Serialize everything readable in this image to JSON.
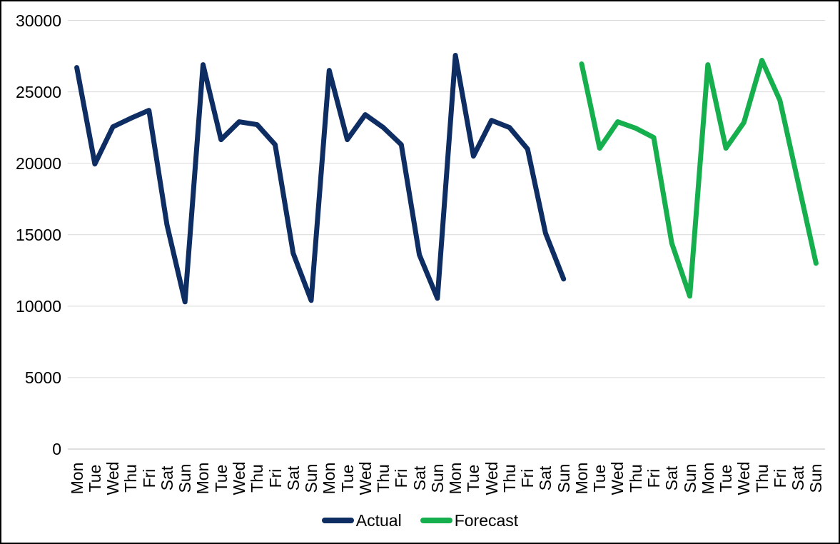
{
  "chart_data": {
    "type": "line",
    "title": "",
    "xlabel": "",
    "ylabel": "",
    "categories": [
      "Mon",
      "Tue",
      "Wed",
      "Thu",
      "Fri",
      "Sat",
      "Sun",
      "Mon",
      "Tue",
      "Wed",
      "Thu",
      "Fri",
      "Sat",
      "Sun",
      "Mon",
      "Tue",
      "Wed",
      "Thu",
      "Fri",
      "Sat",
      "Sun",
      "Mon",
      "Tue",
      "Wed",
      "Thu",
      "Fri",
      "Sat",
      "Sun",
      "Mon",
      "Tue",
      "Wed",
      "Thu",
      "Fri",
      "Sat",
      "Sun",
      "Mon",
      "Tue",
      "Wed",
      "Thu",
      "Fri",
      "Sat",
      "Sun"
    ],
    "series": [
      {
        "name": "Actual",
        "color": "#0e2e63",
        "values": [
          26700,
          19950,
          22550,
          23150,
          23700,
          15700,
          10300,
          26900,
          21650,
          22900,
          22700,
          21300,
          13700,
          10400,
          26500,
          21650,
          23400,
          22500,
          21300,
          13600,
          10550,
          27550,
          20500,
          23000,
          22500,
          21000,
          15100,
          11900,
          null,
          null,
          null,
          null,
          null,
          null,
          null,
          null,
          null,
          null,
          null,
          null,
          null,
          null
        ]
      },
      {
        "name": "Forecast",
        "color": "#16af4d",
        "values": [
          null,
          null,
          null,
          null,
          null,
          null,
          null,
          null,
          null,
          null,
          null,
          null,
          null,
          null,
          null,
          null,
          null,
          null,
          null,
          null,
          null,
          null,
          null,
          null,
          null,
          null,
          null,
          null,
          26950,
          21050,
          22900,
          22450,
          21800,
          14400,
          10700,
          26900,
          21050,
          22850,
          27200,
          24400,
          18700,
          13000
        ]
      }
    ],
    "ylim": [
      0,
      30000
    ],
    "yticks": [
      0,
      5000,
      10000,
      15000,
      20000,
      25000,
      30000
    ],
    "grid": true,
    "legend_position": "bottom"
  },
  "colors": {
    "gridline": "#d9d9d9",
    "axis_line": "#bfbfbf",
    "tick_text": "#000000",
    "background": "#ffffff",
    "border": "#000000"
  }
}
